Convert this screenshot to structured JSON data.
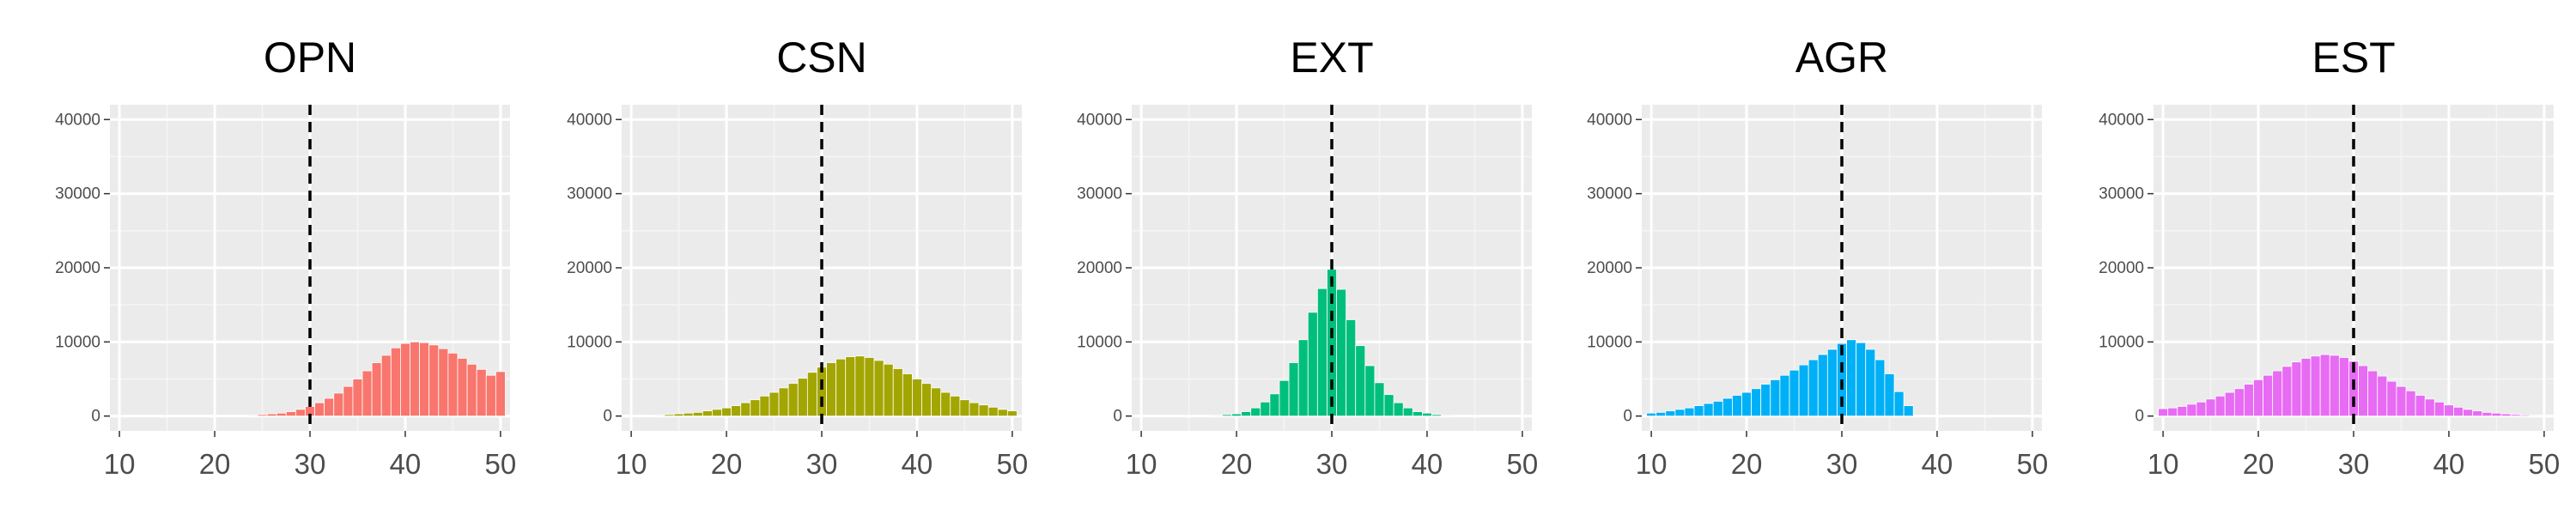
{
  "chart_data": [
    {
      "type": "bar",
      "title": "OPN",
      "color": "#F8766D",
      "xlabel": "",
      "ylabel": "",
      "xlim": [
        9,
        51
      ],
      "ylim": [
        -2000,
        42000
      ],
      "x_ticks": [
        10,
        20,
        30,
        40,
        50
      ],
      "y_ticks": [
        0,
        10000,
        20000,
        30000,
        40000
      ],
      "reference_line_x": 30,
      "x": [
        24,
        25,
        26,
        27,
        28,
        29,
        30,
        31,
        32,
        33,
        34,
        35,
        36,
        37,
        38,
        39,
        40,
        41,
        42,
        43,
        44,
        45,
        46,
        47,
        48,
        49,
        50
      ],
      "values": [
        100,
        200,
        300,
        400,
        600,
        900,
        1300,
        1800,
        2400,
        3100,
        4000,
        5000,
        6100,
        7200,
        8200,
        9200,
        9800,
        10000,
        9900,
        9600,
        9100,
        8500,
        7800,
        7000,
        6300,
        5500,
        6000
      ]
    },
    {
      "type": "bar",
      "title": "CSN",
      "color": "#A3A500",
      "xlabel": "",
      "ylabel": "",
      "xlim": [
        9,
        51
      ],
      "ylim": [
        -2000,
        42000
      ],
      "x_ticks": [
        10,
        20,
        30,
        40,
        50
      ],
      "y_ticks": [
        0,
        10000,
        20000,
        30000,
        40000
      ],
      "reference_line_x": 30,
      "x": [
        13,
        14,
        15,
        16,
        17,
        18,
        19,
        20,
        21,
        22,
        23,
        24,
        25,
        26,
        27,
        28,
        29,
        30,
        31,
        32,
        33,
        34,
        35,
        36,
        37,
        38,
        39,
        40,
        41,
        42,
        43,
        44,
        45,
        46,
        47,
        48,
        49,
        50
      ],
      "values": [
        100,
        200,
        300,
        400,
        500,
        700,
        900,
        1100,
        1400,
        1800,
        2200,
        2700,
        3200,
        3800,
        4400,
        5100,
        5900,
        6600,
        7200,
        7700,
        8000,
        8100,
        7900,
        7500,
        7000,
        6400,
        5700,
        5000,
        4400,
        3800,
        3200,
        2700,
        2200,
        1800,
        1500,
        1200,
        900,
        700
      ]
    },
    {
      "type": "bar",
      "title": "EXT",
      "color": "#00BF7D",
      "xlabel": "",
      "ylabel": "",
      "xlim": [
        9,
        51
      ],
      "ylim": [
        -2000,
        42000
      ],
      "x_ticks": [
        10,
        20,
        30,
        40,
        50
      ],
      "y_ticks": [
        0,
        10000,
        20000,
        30000,
        40000
      ],
      "reference_line_x": 30,
      "x": [
        18,
        19,
        20,
        21,
        22,
        23,
        24,
        25,
        26,
        27,
        28,
        29,
        30,
        31,
        32,
        33,
        34,
        35,
        36,
        37,
        38,
        39,
        40,
        41,
        42
      ],
      "values": [
        100,
        200,
        300,
        600,
        1100,
        1900,
        3000,
        4800,
        7200,
        10300,
        14000,
        17200,
        19800,
        17100,
        13000,
        9500,
        6800,
        4500,
        2900,
        1800,
        1100,
        600,
        400,
        200,
        100
      ]
    },
    {
      "type": "bar",
      "title": "AGR",
      "color": "#00B0F6",
      "xlabel": "",
      "ylabel": "",
      "xlim": [
        9,
        51
      ],
      "ylim": [
        -2000,
        42000
      ],
      "x_ticks": [
        10,
        20,
        30,
        40,
        50
      ],
      "y_ticks": [
        0,
        10000,
        20000,
        30000,
        40000
      ],
      "reference_line_x": 30,
      "x": [
        10,
        11,
        12,
        13,
        14,
        15,
        16,
        17,
        18,
        19,
        20,
        21,
        22,
        23,
        24,
        25,
        26,
        27,
        28,
        29,
        30,
        31,
        32,
        33,
        34,
        35,
        36,
        37
      ],
      "values": [
        400,
        500,
        700,
        900,
        1100,
        1400,
        1700,
        2000,
        2400,
        2800,
        3200,
        3700,
        4300,
        4900,
        5500,
        6200,
        6900,
        7600,
        8300,
        9000,
        9800,
        10300,
        9900,
        9000,
        7600,
        5700,
        3300,
        1400
      ]
    },
    {
      "type": "bar",
      "title": "EST",
      "color": "#E76BF3",
      "xlabel": "",
      "ylabel": "",
      "xlim": [
        9,
        51
      ],
      "ylim": [
        -2000,
        42000
      ],
      "x_ticks": [
        10,
        20,
        30,
        40,
        50
      ],
      "y_ticks": [
        0,
        10000,
        20000,
        30000,
        40000
      ],
      "reference_line_x": 30,
      "x": [
        10,
        11,
        12,
        13,
        14,
        15,
        16,
        17,
        18,
        19,
        20,
        21,
        22,
        23,
        24,
        25,
        26,
        27,
        28,
        29,
        30,
        31,
        32,
        33,
        34,
        35,
        36,
        37,
        38,
        39,
        40,
        41,
        42,
        43,
        44,
        45,
        46,
        47,
        48,
        49,
        50
      ],
      "values": [
        1000,
        1100,
        1300,
        1600,
        1900,
        2300,
        2700,
        3200,
        3700,
        4300,
        4900,
        5500,
        6100,
        6700,
        7300,
        7800,
        8100,
        8300,
        8200,
        7900,
        7400,
        6800,
        6100,
        5400,
        4700,
        4000,
        3400,
        2800,
        2300,
        1900,
        1500,
        1200,
        900,
        700,
        500,
        400,
        300,
        200,
        150,
        100,
        50
      ]
    }
  ]
}
